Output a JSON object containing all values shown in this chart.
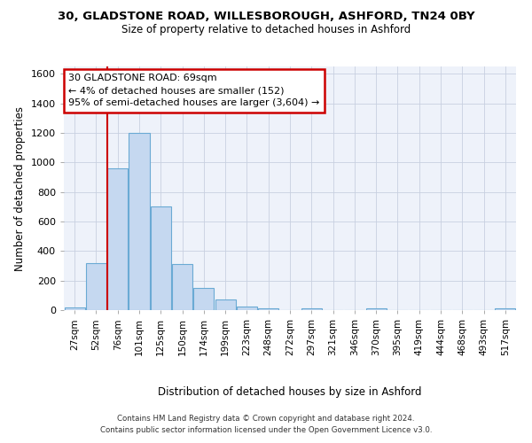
{
  "title_line1": "30, GLADSTONE ROAD, WILLESBOROUGH, ASHFORD, TN24 0BY",
  "title_line2": "Size of property relative to detached houses in Ashford",
  "xlabel": "Distribution of detached houses by size in Ashford",
  "ylabel": "Number of detached properties",
  "bin_labels": [
    "27sqm",
    "52sqm",
    "76sqm",
    "101sqm",
    "125sqm",
    "150sqm",
    "174sqm",
    "199sqm",
    "223sqm",
    "248sqm",
    "272sqm",
    "297sqm",
    "321sqm",
    "346sqm",
    "370sqm",
    "395sqm",
    "419sqm",
    "444sqm",
    "468sqm",
    "493sqm",
    "517sqm"
  ],
  "bar_values": [
    20,
    320,
    960,
    1200,
    700,
    310,
    150,
    75,
    25,
    15,
    0,
    10,
    0,
    0,
    10,
    0,
    0,
    0,
    0,
    0,
    10
  ],
  "bar_color": "#c5d8f0",
  "bar_edge_color": "#6aaad4",
  "grid_color": "#c8d0e0",
  "bg_color": "#eef2fa",
  "red_line_x": 2.0,
  "annotation_text": "30 GLADSTONE ROAD: 69sqm\n← 4% of detached houses are smaller (152)\n95% of semi-detached houses are larger (3,604) →",
  "annotation_box_facecolor": "#ffffff",
  "annotation_box_edgecolor": "#cc0000",
  "ylim": [
    0,
    1650
  ],
  "yticks": [
    0,
    200,
    400,
    600,
    800,
    1000,
    1200,
    1400,
    1600
  ],
  "footer_line1": "Contains HM Land Registry data © Crown copyright and database right 2024.",
  "footer_line2": "Contains public sector information licensed under the Open Government Licence v3.0."
}
